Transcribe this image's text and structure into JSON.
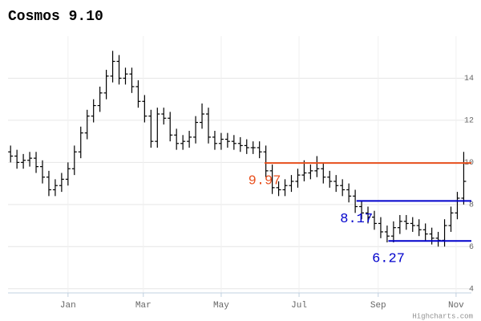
{
  "chart_data": {
    "type": "ohlc",
    "title": "Cosmos 9.10",
    "credits": "Highcharts.com",
    "color": "#000000",
    "grid": true,
    "xlim": [
      -47,
      316
    ],
    "ylim": [
      3.8,
      16
    ],
    "xticks": [
      {
        "value": 0,
        "label": "Jan"
      },
      {
        "value": 59,
        "label": "Mar"
      },
      {
        "value": 120,
        "label": "May"
      },
      {
        "value": 181,
        "label": "Jul"
      },
      {
        "value": 243,
        "label": "Sep"
      },
      {
        "value": 304,
        "label": "Nov"
      }
    ],
    "yticks": [
      4,
      6,
      8,
      10,
      12,
      14
    ],
    "x": [
      -45,
      -40,
      -35,
      -30,
      -25,
      -20,
      -15,
      -10,
      -5,
      0,
      5,
      10,
      15,
      20,
      25,
      30,
      35,
      40,
      45,
      50,
      55,
      60,
      65,
      70,
      75,
      80,
      85,
      90,
      95,
      100,
      105,
      110,
      115,
      120,
      125,
      130,
      135,
      140,
      145,
      150,
      155,
      160,
      165,
      170,
      175,
      180,
      185,
      190,
      195,
      200,
      205,
      210,
      215,
      220,
      225,
      230,
      235,
      240,
      245,
      250,
      255,
      260,
      265,
      270,
      275,
      280,
      285,
      290,
      295,
      300,
      305,
      310
    ],
    "open": [
      10.5,
      10.3,
      10.0,
      10.1,
      10.2,
      9.8,
      9.3,
      8.7,
      8.9,
      9.2,
      9.7,
      10.5,
      11.4,
      12.2,
      12.7,
      13.3,
      14.1,
      14.8,
      14.0,
      14.2,
      13.6,
      12.9,
      12.2,
      11.0,
      12.3,
      12.1,
      11.3,
      10.9,
      11.0,
      11.2,
      11.9,
      12.3,
      11.2,
      10.9,
      11.1,
      11.0,
      10.9,
      10.8,
      10.7,
      10.7,
      10.5,
      9.6,
      8.8,
      8.7,
      8.9,
      9.1,
      9.4,
      9.5,
      9.6,
      9.7,
      9.3,
      9.1,
      8.9,
      8.7,
      8.4,
      7.9,
      7.6,
      7.4,
      7.1,
      6.7,
      6.5,
      6.9,
      7.2,
      7.1,
      7.0,
      6.8,
      6.6,
      6.4,
      6.3,
      7.0,
      7.6,
      8.3
    ],
    "high": [
      10.8,
      10.6,
      10.4,
      10.5,
      10.5,
      10.1,
      9.6,
      9.2,
      9.5,
      10.0,
      10.8,
      11.7,
      12.5,
      13.0,
      13.6,
      14.4,
      15.3,
      15.1,
      14.5,
      14.5,
      13.9,
      13.2,
      12.5,
      12.6,
      12.6,
      12.4,
      11.6,
      11.3,
      11.5,
      12.2,
      12.8,
      12.6,
      11.5,
      11.4,
      11.4,
      11.3,
      11.2,
      11.1,
      11.0,
      11.0,
      10.8,
      9.9,
      9.1,
      9.2,
      9.4,
      9.7,
      10.1,
      9.9,
      10.3,
      10.0,
      9.6,
      9.4,
      9.2,
      9.0,
      8.7,
      8.2,
      7.9,
      7.7,
      7.4,
      7.0,
      7.2,
      7.5,
      7.5,
      7.4,
      7.3,
      7.1,
      6.9,
      6.7,
      7.3,
      7.9,
      8.6,
      10.5
    ],
    "low": [
      10.0,
      9.7,
      9.7,
      9.8,
      9.5,
      9.0,
      8.4,
      8.4,
      8.6,
      8.9,
      9.4,
      10.2,
      11.1,
      11.9,
      12.4,
      13.0,
      13.8,
      13.7,
      13.7,
      13.3,
      12.6,
      11.9,
      10.7,
      10.7,
      11.8,
      11.0,
      10.6,
      10.6,
      10.7,
      10.9,
      11.6,
      10.9,
      10.6,
      10.6,
      10.7,
      10.6,
      10.5,
      10.4,
      10.4,
      10.2,
      9.3,
      8.5,
      8.4,
      8.4,
      8.6,
      8.8,
      9.1,
      9.2,
      9.3,
      9.0,
      8.8,
      8.6,
      8.4,
      8.1,
      7.6,
      7.3,
      7.1,
      6.8,
      6.4,
      6.2,
      6.2,
      6.6,
      6.8,
      6.7,
      6.5,
      6.3,
      6.1,
      6.0,
      6.0,
      6.7,
      7.3,
      8.0
    ],
    "close": [
      10.3,
      10.0,
      10.1,
      10.2,
      9.8,
      9.3,
      8.7,
      8.9,
      9.2,
      9.7,
      10.5,
      11.4,
      12.2,
      12.7,
      13.3,
      14.1,
      14.8,
      14.0,
      14.2,
      13.6,
      12.9,
      12.2,
      11.0,
      12.3,
      12.1,
      11.3,
      10.9,
      11.0,
      11.2,
      11.9,
      12.3,
      11.2,
      10.9,
      11.1,
      11.0,
      10.9,
      10.8,
      10.7,
      10.7,
      10.5,
      9.6,
      8.8,
      8.7,
      8.9,
      9.1,
      9.4,
      9.5,
      9.6,
      9.7,
      9.3,
      9.1,
      8.9,
      8.7,
      8.4,
      7.9,
      7.6,
      7.4,
      7.1,
      6.7,
      6.5,
      6.9,
      7.2,
      7.1,
      7.0,
      6.8,
      6.6,
      6.4,
      6.3,
      7.0,
      7.6,
      8.3,
      9.1
    ],
    "levels": [
      {
        "value": 9.97,
        "from": 154,
        "color": "#e8501e"
      },
      {
        "value": 8.17,
        "from": 226,
        "color": "#0000cc"
      },
      {
        "value": 6.27,
        "from": 251,
        "color": "#0000cc"
      }
    ]
  }
}
